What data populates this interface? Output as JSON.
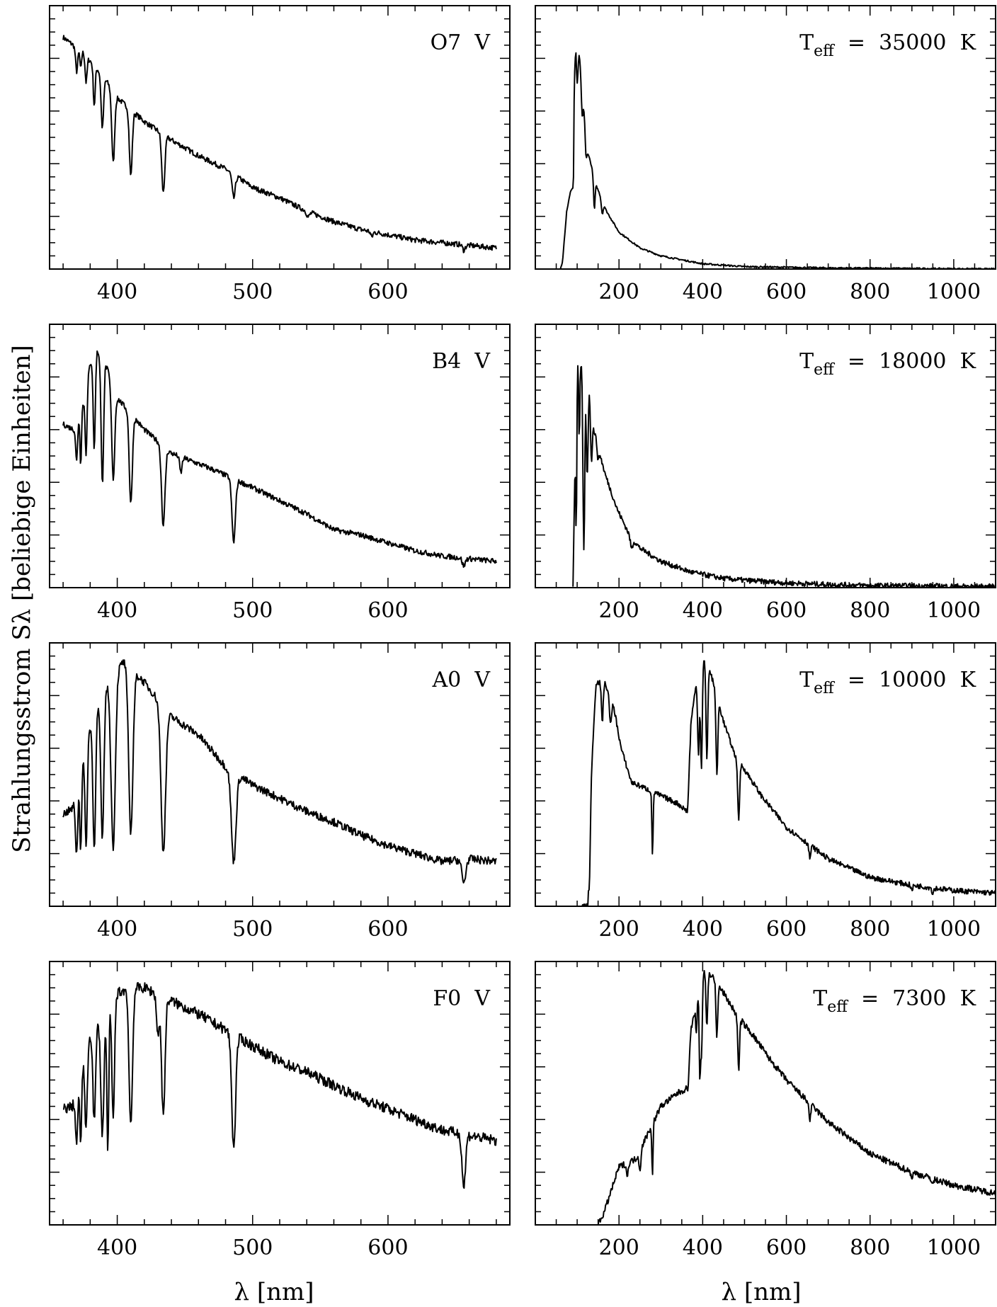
{
  "figure": {
    "ylabel": "Strahlungsstrom Sλ [beliebige Einheiten]",
    "xlabel": "λ [nm]"
  },
  "chart_data": [
    {
      "type": "line",
      "label": "O7 V",
      "xlim": [
        350,
        690
      ],
      "ylim": [
        0,
        1
      ],
      "xticks": [
        400,
        500,
        600
      ],
      "tick_labels": [
        "400",
        "500",
        "600"
      ],
      "baseline": [
        [
          360,
          0.88
        ],
        [
          365,
          0.86
        ],
        [
          375,
          0.82
        ],
        [
          390,
          0.73
        ],
        [
          400,
          0.65
        ],
        [
          420,
          0.56
        ],
        [
          440,
          0.49
        ],
        [
          460,
          0.43
        ],
        [
          480,
          0.38
        ],
        [
          500,
          0.31
        ],
        [
          520,
          0.27
        ],
        [
          540,
          0.22
        ],
        [
          560,
          0.18
        ],
        [
          580,
          0.15
        ],
        [
          600,
          0.13
        ],
        [
          620,
          0.11
        ],
        [
          640,
          0.1
        ],
        [
          660,
          0.09
        ],
        [
          680,
          0.08
        ]
      ],
      "lines": [
        [
          370,
          0.09,
          1.1
        ],
        [
          373,
          0.07,
          0.8
        ],
        [
          377,
          0.1,
          1.0
        ],
        [
          383,
          0.15,
          1.0
        ],
        [
          389,
          0.2,
          1.3
        ],
        [
          397,
          0.27,
          1.5
        ],
        [
          410,
          0.25,
          1.5
        ],
        [
          434,
          0.22,
          1.6
        ],
        [
          486,
          0.09,
          1.6
        ],
        [
          541,
          0.02,
          1.5
        ],
        [
          588,
          0.02,
          1.2
        ],
        [
          656,
          0.02,
          1.5
        ]
      ],
      "noise": 0.01
    },
    {
      "type": "line",
      "label": "T_eff = 35000 K",
      "xlim": [
        0,
        1100
      ],
      "ylim": [
        0,
        1
      ],
      "xticks": [
        200,
        400,
        600,
        800,
        1000
      ],
      "tick_labels": [
        "200",
        "400",
        "600",
        "800",
        "1000"
      ],
      "baseline": [
        [
          60,
          0.0
        ],
        [
          65,
          0.03
        ],
        [
          75,
          0.22
        ],
        [
          85,
          0.3
        ],
        [
          91,
          0.31
        ],
        [
          93,
          0.7
        ],
        [
          97,
          0.88
        ],
        [
          105,
          0.82
        ],
        [
          115,
          0.65
        ],
        [
          125,
          0.45
        ],
        [
          145,
          0.32
        ],
        [
          170,
          0.22
        ],
        [
          200,
          0.14
        ],
        [
          250,
          0.08
        ],
        [
          300,
          0.05
        ],
        [
          400,
          0.02
        ],
        [
          500,
          0.009
        ],
        [
          700,
          0.004
        ],
        [
          1100,
          0.0
        ]
      ],
      "lines": [
        [
          100,
          0.15,
          3
        ],
        [
          112,
          0.12,
          3
        ],
        [
          121,
          0.1,
          3
        ],
        [
          141,
          0.12,
          2.5
        ],
        [
          160,
          0.05,
          3
        ]
      ],
      "noise": 0.003
    },
    {
      "type": "line",
      "label": "B4 V",
      "xlim": [
        350,
        690
      ],
      "ylim": [
        0,
        1
      ],
      "xticks": [
        400,
        500,
        600
      ],
      "tick_labels": [
        "400",
        "500",
        "600"
      ],
      "baseline": [
        [
          360,
          0.62
        ],
        [
          368,
          0.6
        ],
        [
          375,
          0.7
        ],
        [
          380,
          0.85
        ],
        [
          385,
          0.9
        ],
        [
          390,
          0.87
        ],
        [
          400,
          0.72
        ],
        [
          420,
          0.6
        ],
        [
          440,
          0.51
        ],
        [
          470,
          0.45
        ],
        [
          500,
          0.38
        ],
        [
          520,
          0.33
        ],
        [
          540,
          0.28
        ],
        [
          560,
          0.22
        ],
        [
          580,
          0.2
        ],
        [
          600,
          0.17
        ],
        [
          620,
          0.14
        ],
        [
          640,
          0.12
        ],
        [
          660,
          0.11
        ],
        [
          680,
          0.1
        ]
      ],
      "lines": [
        [
          370,
          0.15,
          1.0
        ],
        [
          373,
          0.2,
          0.8
        ],
        [
          377,
          0.25,
          1.0
        ],
        [
          383,
          0.35,
          1.1
        ],
        [
          389,
          0.48,
          1.3
        ],
        [
          397,
          0.35,
          1.6
        ],
        [
          410,
          0.34,
          1.6
        ],
        [
          434,
          0.3,
          1.8
        ],
        [
          447,
          0.06,
          1.2
        ],
        [
          486,
          0.24,
          1.8
        ],
        [
          656,
          0.03,
          1.5
        ]
      ],
      "noise": 0.01
    },
    {
      "type": "line",
      "label": "T_eff = 18000 K",
      "xlim": [
        0,
        1100
      ],
      "ylim": [
        0,
        1
      ],
      "xticks": [
        200,
        400,
        600,
        800,
        1000
      ],
      "tick_labels": [
        "200",
        "400",
        "600",
        "800",
        "1000"
      ],
      "baseline": [
        [
          90,
          0.0
        ],
        [
          95,
          0.5
        ],
        [
          100,
          0.88
        ],
        [
          108,
          0.85
        ],
        [
          125,
          0.82
        ],
        [
          140,
          0.6
        ],
        [
          165,
          0.44
        ],
        [
          195,
          0.3
        ],
        [
          225,
          0.2
        ],
        [
          250,
          0.15
        ],
        [
          300,
          0.1
        ],
        [
          370,
          0.06
        ],
        [
          400,
          0.05
        ],
        [
          450,
          0.035
        ],
        [
          500,
          0.028
        ],
        [
          600,
          0.018
        ],
        [
          700,
          0.012
        ],
        [
          800,
          0.008
        ],
        [
          1100,
          0.004
        ]
      ],
      "lines": [
        [
          98,
          0.5,
          2
        ],
        [
          105,
          0.3,
          2
        ],
        [
          116,
          0.7,
          3
        ],
        [
          124,
          0.4,
          3
        ],
        [
          134,
          0.2,
          3
        ],
        [
          150,
          0.05,
          3
        ],
        [
          230,
          0.04,
          4
        ]
      ],
      "noise": 0.01
    },
    {
      "type": "line",
      "label": "A0 V",
      "xlim": [
        350,
        690
      ],
      "ylim": [
        0,
        1
      ],
      "xticks": [
        400,
        500,
        600
      ],
      "tick_labels": [
        "400",
        "500",
        "600"
      ],
      "baseline": [
        [
          360,
          0.35
        ],
        [
          367,
          0.37
        ],
        [
          372,
          0.5
        ],
        [
          380,
          0.68
        ],
        [
          390,
          0.82
        ],
        [
          400,
          0.9
        ],
        [
          405,
          0.93
        ],
        [
          420,
          0.85
        ],
        [
          440,
          0.72
        ],
        [
          460,
          0.65
        ],
        [
          480,
          0.53
        ],
        [
          500,
          0.46
        ],
        [
          520,
          0.41
        ],
        [
          540,
          0.36
        ],
        [
          560,
          0.32
        ],
        [
          580,
          0.27
        ],
        [
          600,
          0.23
        ],
        [
          620,
          0.2
        ],
        [
          640,
          0.17
        ],
        [
          660,
          0.18
        ],
        [
          680,
          0.17
        ]
      ],
      "lines": [
        [
          370,
          0.25,
          1.2
        ],
        [
          373,
          0.3,
          1.0
        ],
        [
          377,
          0.38,
          1.2
        ],
        [
          383,
          0.5,
          1.4
        ],
        [
          389,
          0.55,
          1.6
        ],
        [
          397,
          0.65,
          2.2
        ],
        [
          410,
          0.62,
          2.2
        ],
        [
          434,
          0.55,
          2.4
        ],
        [
          486,
          0.34,
          2.4
        ],
        [
          656,
          0.09,
          2.0
        ]
      ],
      "noise": 0.015
    },
    {
      "type": "line",
      "label": "T_eff = 10000 K",
      "xlim": [
        0,
        1100
      ],
      "ylim": [
        0,
        1
      ],
      "xticks": [
        200,
        400,
        600,
        800,
        1000
      ],
      "tick_labels": [
        "200",
        "400",
        "600",
        "800",
        "1000"
      ],
      "baseline": [
        [
          110,
          0.0
        ],
        [
          125,
          0.0
        ],
        [
          132,
          0.45
        ],
        [
          145,
          0.85
        ],
        [
          165,
          0.85
        ],
        [
          185,
          0.78
        ],
        [
          205,
          0.6
        ],
        [
          230,
          0.47
        ],
        [
          260,
          0.45
        ],
        [
          300,
          0.42
        ],
        [
          340,
          0.39
        ],
        [
          364,
          0.36
        ],
        [
          372,
          0.7
        ],
        [
          385,
          0.85
        ],
        [
          400,
          0.95
        ],
        [
          420,
          0.88
        ],
        [
          450,
          0.7
        ],
        [
          480,
          0.56
        ],
        [
          500,
          0.52
        ],
        [
          540,
          0.42
        ],
        [
          600,
          0.3
        ],
        [
          650,
          0.24
        ],
        [
          700,
          0.18
        ],
        [
          800,
          0.11
        ],
        [
          900,
          0.08
        ],
        [
          1000,
          0.06
        ],
        [
          1100,
          0.05
        ]
      ],
      "lines": [
        [
          130,
          0.2,
          3
        ],
        [
          160,
          0.15,
          3
        ],
        [
          180,
          0.1,
          4
        ],
        [
          280,
          0.25,
          2
        ],
        [
          390,
          0.3,
          3
        ],
        [
          397,
          0.4,
          3
        ],
        [
          410,
          0.35,
          3
        ],
        [
          434,
          0.3,
          3
        ],
        [
          486,
          0.23,
          3
        ],
        [
          656,
          0.05,
          3
        ],
        [
          900,
          0.02,
          3
        ],
        [
          950,
          0.02,
          3
        ]
      ],
      "noise": 0.01
    },
    {
      "type": "line",
      "label": "F0 V",
      "xlim": [
        350,
        690
      ],
      "ylim": [
        0,
        1
      ],
      "xticks": [
        400,
        500,
        600
      ],
      "tick_labels": [
        "400",
        "500",
        "600"
      ],
      "baseline": [
        [
          360,
          0.44
        ],
        [
          367,
          0.45
        ],
        [
          372,
          0.55
        ],
        [
          380,
          0.72
        ],
        [
          390,
          0.8
        ],
        [
          400,
          0.88
        ],
        [
          410,
          0.9
        ],
        [
          420,
          0.9
        ],
        [
          440,
          0.85
        ],
        [
          460,
          0.8
        ],
        [
          480,
          0.74
        ],
        [
          500,
          0.68
        ],
        [
          520,
          0.62
        ],
        [
          540,
          0.58
        ],
        [
          560,
          0.53
        ],
        [
          580,
          0.48
        ],
        [
          600,
          0.44
        ],
        [
          620,
          0.4
        ],
        [
          640,
          0.36
        ],
        [
          660,
          0.34
        ],
        [
          680,
          0.32
        ]
      ],
      "lines": [
        [
          370,
          0.2,
          1.2
        ],
        [
          373,
          0.25,
          1.0
        ],
        [
          377,
          0.3,
          1.2
        ],
        [
          383,
          0.35,
          1.4
        ],
        [
          389,
          0.45,
          1.6
        ],
        [
          393,
          0.55,
          1.0
        ],
        [
          397,
          0.45,
          1.4
        ],
        [
          410,
          0.52,
          1.8
        ],
        [
          430,
          0.15,
          1.4
        ],
        [
          434,
          0.45,
          1.8
        ],
        [
          486,
          0.43,
          2.0
        ],
        [
          656,
          0.2,
          1.8
        ]
      ],
      "noise": 0.02
    },
    {
      "type": "line",
      "label": "T_eff = 7300 K",
      "xlim": [
        0,
        1100
      ],
      "ylim": [
        0,
        1
      ],
      "xticks": [
        200,
        400,
        600,
        800,
        1000
      ],
      "tick_labels": [
        "200",
        "400",
        "600",
        "800",
        "1000"
      ],
      "baseline": [
        [
          150,
          0.0
        ],
        [
          165,
          0.05
        ],
        [
          200,
          0.22
        ],
        [
          240,
          0.25
        ],
        [
          270,
          0.35
        ],
        [
          300,
          0.45
        ],
        [
          340,
          0.5
        ],
        [
          365,
          0.52
        ],
        [
          372,
          0.75
        ],
        [
          385,
          0.82
        ],
        [
          400,
          0.97
        ],
        [
          420,
          0.95
        ],
        [
          450,
          0.88
        ],
        [
          480,
          0.8
        ],
        [
          520,
          0.72
        ],
        [
          560,
          0.63
        ],
        [
          600,
          0.55
        ],
        [
          650,
          0.47
        ],
        [
          700,
          0.39
        ],
        [
          800,
          0.27
        ],
        [
          900,
          0.2
        ],
        [
          1000,
          0.15
        ],
        [
          1100,
          0.12
        ]
      ],
      "lines": [
        [
          220,
          0.05,
          3
        ],
        [
          250,
          0.08,
          3
        ],
        [
          280,
          0.2,
          2
        ],
        [
          385,
          0.1,
          2
        ],
        [
          393,
          0.3,
          2
        ],
        [
          397,
          0.3,
          3
        ],
        [
          410,
          0.2,
          3
        ],
        [
          434,
          0.2,
          3
        ],
        [
          486,
          0.2,
          3
        ],
        [
          656,
          0.06,
          3
        ],
        [
          900,
          0.02,
          3
        ],
        [
          950,
          0.02,
          3
        ]
      ],
      "noise": 0.012
    }
  ]
}
